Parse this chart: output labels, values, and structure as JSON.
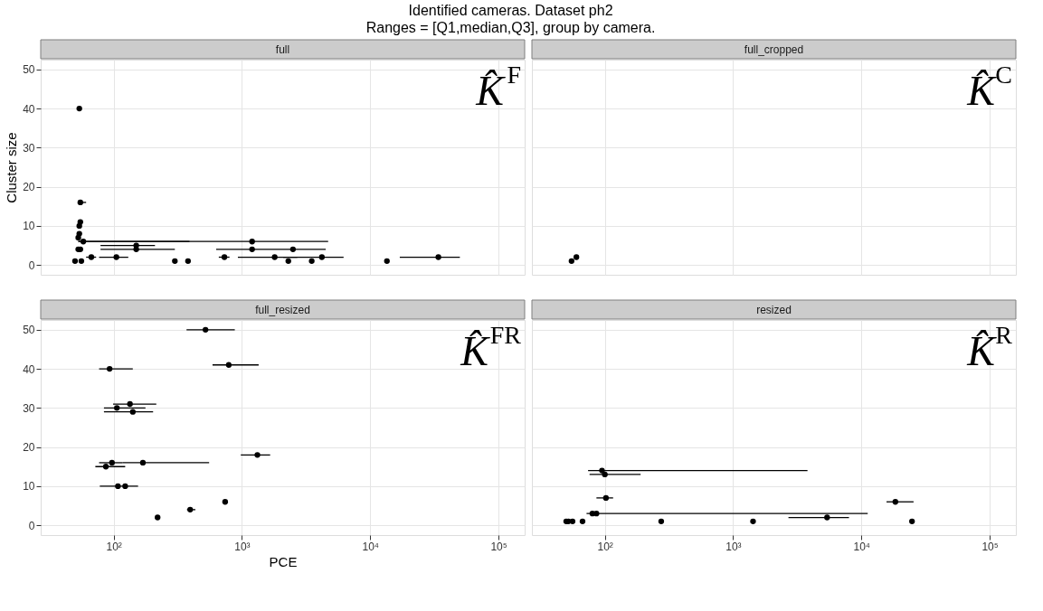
{
  "chart_data": [
    {
      "type": "scatter",
      "title": "full",
      "ylabel": "Cluster size",
      "log": "x",
      "grid": true,
      "tick_labels": "y",
      "annotations": [
        "Identified cameras. Dataset ph2",
        "Ranges = [Q1,median,Q3], group by camera.",
        "K̂$^{F}$"
      ],
      "xlim": [
        27,
        160000
      ],
      "xticks": [
        {
          "value": 100,
          "label": null
        },
        {
          "value": 1000,
          "label": null
        },
        {
          "value": 10000,
          "label": null
        },
        {
          "value": 100000,
          "label": null
        }
      ],
      "ylim": [
        -2.5,
        52.5
      ],
      "yticks": [
        0,
        10,
        20,
        30,
        40,
        50
      ],
      "series": [
        {
          "color": "#000000",
          "x": [
            54,
            55,
            55,
            54,
            54,
            53,
            58,
            1200,
            53,
            55,
            150,
            150,
            1200,
            2500,
            67,
            105,
            730,
            1800,
            4200,
            34000,
            50,
            56,
            300,
            380,
            2300,
            3500,
            13500
          ],
          "values": [
            40,
            16,
            11,
            10,
            8,
            7,
            6,
            6,
            4,
            4,
            5,
            4,
            4,
            4,
            2,
            2,
            2,
            2,
            2,
            2,
            1,
            1,
            1,
            1,
            1,
            1,
            1
          ],
          "xerrors": [
            null,
            [
              53,
              61
            ],
            null,
            null,
            null,
            null,
            [
              53,
              390
            ],
            [
              53,
              4700
            ],
            null,
            null,
            [
              79,
              210
            ],
            [
              79,
              300
            ],
            [
              630,
              4500
            ],
            null,
            [
              61,
              73
            ],
            [
              77,
              130
            ],
            [
              660,
              800
            ],
            [
              930,
              2700
            ],
            [
              2100,
              6200
            ],
            [
              17000,
              50000
            ],
            null,
            null,
            null,
            null,
            null,
            null,
            null
          ]
        }
      ]
    },
    {
      "type": "scatter",
      "title": "full_cropped",
      "log": "x",
      "grid": true,
      "tick_labels": false,
      "annotations": [
        "K̂$^{C}$"
      ],
      "xlim": [
        27,
        160000
      ],
      "xticks": [
        {
          "value": 100,
          "label": null
        },
        {
          "value": 1000,
          "label": null
        },
        {
          "value": 10000,
          "label": null
        },
        {
          "value": 100000,
          "label": null
        }
      ],
      "ylim": [
        -2.5,
        52.5
      ],
      "yticks": [
        0,
        10,
        20,
        30,
        40,
        50
      ],
      "series": [
        {
          "color": "#000000",
          "x": [
            55,
            60
          ],
          "values": [
            1,
            2
          ]
        }
      ]
    },
    {
      "type": "scatter",
      "title": "full_resized",
      "xlabel": "PCE",
      "log": "x",
      "grid": true,
      "annotations": [
        "K̂$^{FR}$"
      ],
      "xlim": [
        27,
        160000
      ],
      "xticks": [
        {
          "value": 100,
          "label": "10²"
        },
        {
          "value": 1000,
          "label": "10³"
        },
        {
          "value": 10000,
          "label": "10⁴"
        },
        {
          "value": 100000,
          "label": "10⁵"
        }
      ],
      "ylim": [
        -2.5,
        52.5
      ],
      "yticks": [
        0,
        10,
        20,
        30,
        40,
        50
      ],
      "series": [
        {
          "color": "#000000",
          "x": [
            520,
            790,
            93,
            134,
            106,
            141,
            1320,
            169,
            97,
            87,
            108,
            123,
            740,
            395,
            220
          ],
          "values": [
            50,
            41,
            40,
            31,
            30,
            29,
            18,
            16,
            16,
            15,
            10,
            10,
            6,
            4,
            2
          ],
          "xerrors": [
            [
              370,
              880
            ],
            [
              590,
              1350
            ],
            [
              77,
              141
            ],
            [
              99,
              215
            ],
            [
              84,
              177
            ],
            [
              84,
              203
            ],
            [
              980,
              1660
            ],
            [
              117,
              555
            ],
            [
              77,
              117
            ],
            [
              72,
              123
            ],
            [
              78,
              155
            ],
            null,
            [
              710,
              770
            ],
            [
              373,
              434
            ],
            null
          ]
        }
      ]
    },
    {
      "type": "scatter",
      "title": "resized",
      "log": "x",
      "grid": true,
      "tick_labels": "x",
      "annotations": [
        "K̂$^{R}$"
      ],
      "xlim": [
        27,
        160000
      ],
      "xticks": [
        {
          "value": 100,
          "label": "10²"
        },
        {
          "value": 1000,
          "label": "10³"
        },
        {
          "value": 10000,
          "label": "10⁴"
        },
        {
          "value": 100000,
          "label": "10⁵"
        }
      ],
      "ylim": [
        -2.5,
        52.5
      ],
      "yticks": [
        0,
        10,
        20,
        30,
        40,
        50
      ],
      "series": [
        {
          "color": "#000000",
          "x": [
            95,
            100,
            102,
            18400,
            80,
            86,
            5400,
            50,
            52,
            56,
            67,
            275,
            1430,
            24800
          ],
          "values": [
            14,
            13,
            7,
            6,
            3,
            3,
            2,
            1,
            1,
            1,
            1,
            1,
            1,
            1
          ],
          "xerrors": [
            [
              74,
              3800
            ],
            [
              76,
              190
            ],
            [
              86,
              116
            ],
            [
              15700,
              25500
            ],
            [
              72,
              11200
            ],
            null,
            [
              2700,
              8000
            ],
            null,
            null,
            null,
            null,
            null,
            null,
            null
          ]
        }
      ]
    }
  ]
}
